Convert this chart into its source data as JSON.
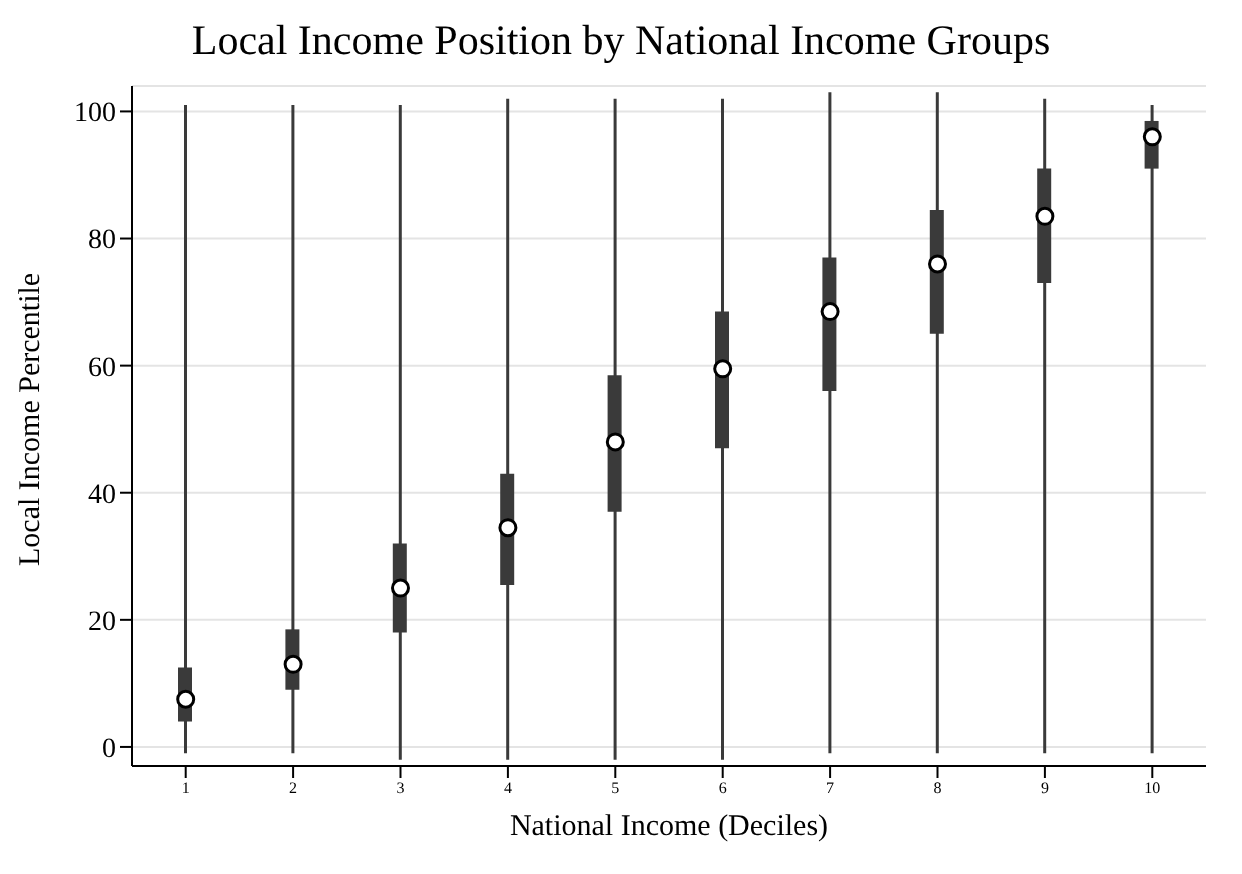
{
  "chart_data": {
    "type": "box",
    "title": "Local Income Position by National Income Groups",
    "xlabel": "National Income (Deciles)",
    "ylabel": "Local Income Percentile",
    "categories": [
      "1",
      "2",
      "3",
      "4",
      "5",
      "6",
      "7",
      "8",
      "9",
      "10"
    ],
    "color": "#3a3a3a",
    "boxes": [
      {
        "low": -1,
        "q1": 4,
        "median": 7.5,
        "q3": 12.5,
        "high": 101
      },
      {
        "low": -1,
        "q1": 9,
        "median": 13,
        "q3": 18.5,
        "high": 101
      },
      {
        "low": -2,
        "q1": 18,
        "median": 25,
        "q3": 32,
        "high": 101
      },
      {
        "low": -2,
        "q1": 25.5,
        "median": 34.5,
        "q3": 43,
        "high": 102
      },
      {
        "low": -2,
        "q1": 37,
        "median": 48,
        "q3": 58.5,
        "high": 102
      },
      {
        "low": -2,
        "q1": 47,
        "median": 59.5,
        "q3": 68.5,
        "high": 102
      },
      {
        "low": -1,
        "q1": 56,
        "median": 68.5,
        "q3": 77,
        "high": 103
      },
      {
        "low": -1,
        "q1": 65,
        "median": 76,
        "q3": 84.5,
        "high": 103
      },
      {
        "low": -1,
        "q1": 73,
        "median": 83.5,
        "q3": 91,
        "high": 102
      },
      {
        "low": -1,
        "q1": 91,
        "median": 96,
        "q3": 98.5,
        "high": 101
      }
    ],
    "ylim": [
      -3,
      104
    ],
    "yticks": [
      0,
      20,
      40,
      60,
      80,
      100
    ],
    "grid": "y"
  }
}
